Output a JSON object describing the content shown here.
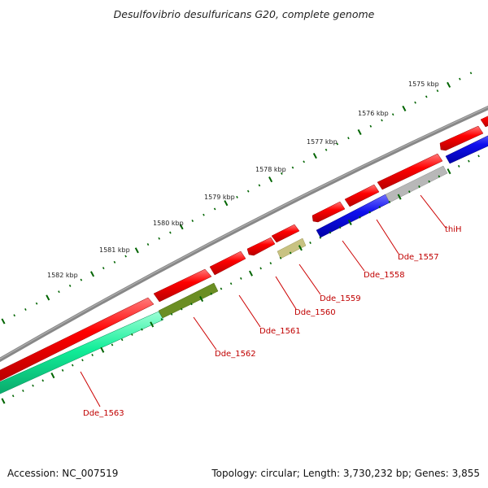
{
  "title": "Desulfovibrio desulfuricans G20, complete genome",
  "footer": {
    "accession": "Accession: NC_007519",
    "summary": "Topology: circular; Length: 3,730,232 bp; Genes: 3,855"
  },
  "kbp_labels": [
    "1575 kbp",
    "1576 kbp",
    "1577 kbp",
    "1578 kbp",
    "1579 kbp",
    "1580 kbp",
    "1581 kbp",
    "1582 kbp"
  ],
  "genes": [
    {
      "label": "thiH"
    },
    {
      "label": "Dde_1557"
    },
    {
      "label": "Dde_1558"
    },
    {
      "label": "Dde_1559"
    },
    {
      "label": "Dde_1560"
    },
    {
      "label": "Dde_1561"
    },
    {
      "label": "Dde_1562"
    },
    {
      "label": "Dde_1563"
    }
  ],
  "colors": {
    "backbone": "#888888",
    "forward_cds": "#ff0000",
    "reverse_blue": "#1010ee",
    "reverse_grey": "#b8b8b8",
    "reverse_olive": "#6b8e23",
    "reverse_khaki": "#c8c282",
    "reverse_teal": "#11ee99",
    "ticks": "#006400",
    "label_red": "#cc0000"
  }
}
